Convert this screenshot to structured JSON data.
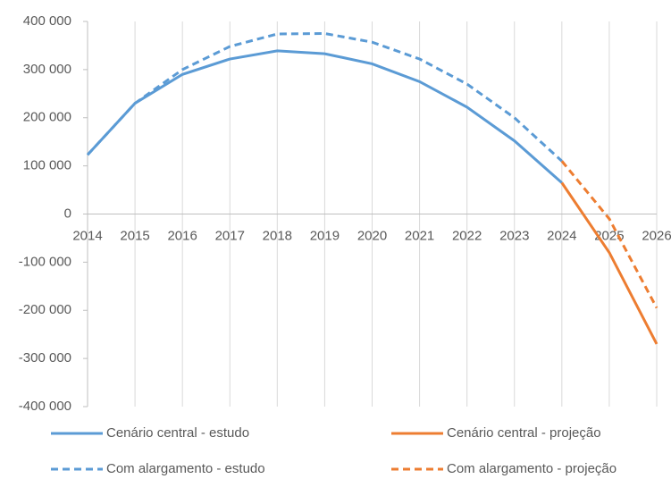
{
  "chart_data": {
    "type": "line",
    "x": [
      2014,
      2015,
      2016,
      2017,
      2018,
      2019,
      2020,
      2021,
      2022,
      2023,
      2024,
      2025,
      2026
    ],
    "xlim": [
      2014,
      2026
    ],
    "xticks": [
      2014,
      2015,
      2016,
      2017,
      2018,
      2019,
      2020,
      2021,
      2022,
      2023,
      2024,
      2025,
      2026
    ],
    "ylim": [
      -400000,
      400000
    ],
    "yticks": [
      {
        "value": -400000,
        "label": "-400 000"
      },
      {
        "value": -300000,
        "label": "-300 000"
      },
      {
        "value": -200000,
        "label": "-200 000"
      },
      {
        "value": -100000,
        "label": "-100 000"
      },
      0,
      {
        "value": 100000,
        "label": "100 000"
      },
      {
        "value": 200000,
        "label": "200 000"
      },
      {
        "value": 300000,
        "label": "300 000"
      },
      {
        "value": 400000,
        "label": "400 000"
      }
    ],
    "grid": "x",
    "legend_position": "bottom",
    "series": [
      {
        "name": "Cenário central - estudo",
        "color": "#5b9bd5",
        "line_style": "solid",
        "values": [
          123000,
          230000,
          290000,
          322000,
          339000,
          333000,
          312000,
          275000,
          222000,
          152000,
          65000,
          null,
          null
        ]
      },
      {
        "name": "Cenário central - projeção",
        "color": "#ed7d31",
        "line_style": "solid",
        "values": [
          null,
          null,
          null,
          null,
          null,
          null,
          null,
          null,
          null,
          null,
          65000,
          -80000,
          -270000
        ]
      },
      {
        "name": "Com alargamento - estudo",
        "color": "#5b9bd5",
        "line_style": "dashed",
        "values": [
          123000,
          230000,
          300000,
          348000,
          374000,
          375000,
          357000,
          322000,
          270000,
          200000,
          110000,
          null,
          null
        ]
      },
      {
        "name": "Com alargamento - projeção",
        "color": "#ed7d31",
        "line_style": "dashed",
        "values": [
          null,
          null,
          null,
          null,
          null,
          null,
          null,
          null,
          null,
          null,
          110000,
          -10000,
          -195000
        ]
      }
    ]
  }
}
